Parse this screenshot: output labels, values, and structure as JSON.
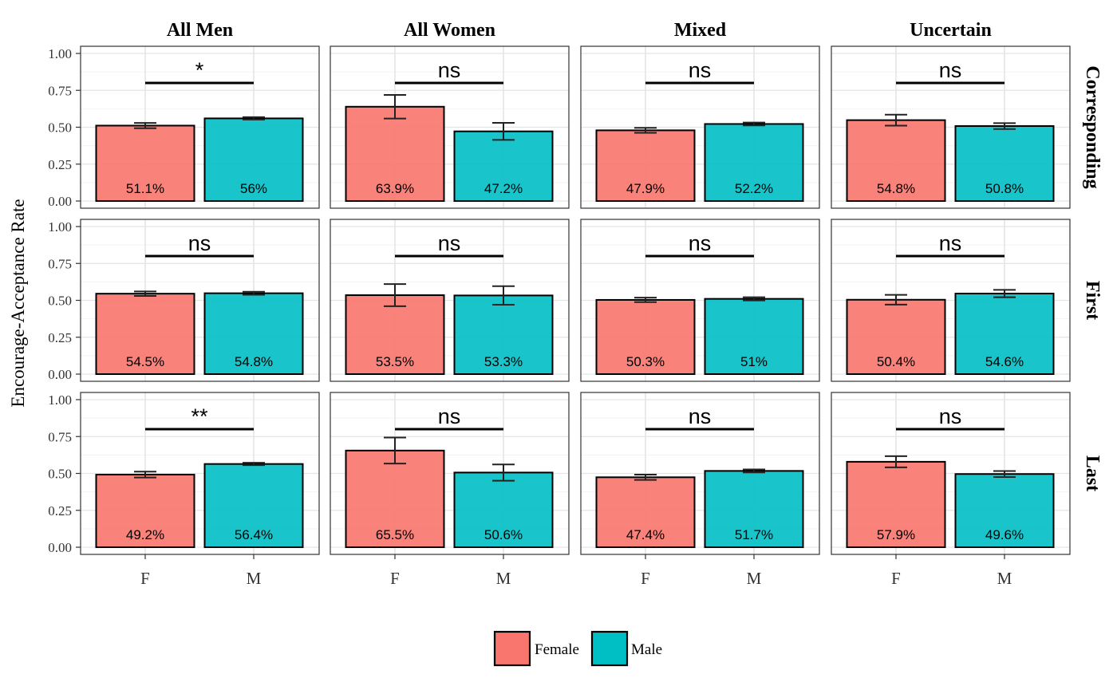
{
  "chart_data": {
    "type": "bar",
    "ylabel": "Encourage-Acceptance Rate",
    "xlabel": "",
    "ylim": [
      0,
      1.05
    ],
    "y_ticks": [
      "0.00",
      "0.25",
      "0.50",
      "0.75",
      "1.00"
    ],
    "categories": [
      "F",
      "M"
    ],
    "column_facets": [
      "All Men",
      "All Women",
      "Mixed",
      "Uncertain"
    ],
    "row_facets": [
      "Corresponding",
      "First",
      "Last"
    ],
    "legend": {
      "position": "bottom",
      "entries": [
        {
          "name": "Female",
          "color": "#F8766D"
        },
        {
          "name": "Male",
          "color": "#00BFC4"
        }
      ]
    },
    "grid": true,
    "panels": [
      {
        "row": "Corresponding",
        "col": "All Men",
        "significance": "*",
        "bars": [
          {
            "x": "F",
            "value": 0.511,
            "error": 0.018,
            "label": "51.1%"
          },
          {
            "x": "M",
            "value": 0.56,
            "error": 0.008,
            "label": "56%"
          }
        ]
      },
      {
        "row": "Corresponding",
        "col": "All Women",
        "significance": "ns",
        "bars": [
          {
            "x": "F",
            "value": 0.639,
            "error": 0.08,
            "label": "63.9%"
          },
          {
            "x": "M",
            "value": 0.472,
            "error": 0.058,
            "label": "47.2%"
          }
        ]
      },
      {
        "row": "Corresponding",
        "col": "Mixed",
        "significance": "ns",
        "bars": [
          {
            "x": "F",
            "value": 0.479,
            "error": 0.017,
            "label": "47.9%"
          },
          {
            "x": "M",
            "value": 0.522,
            "error": 0.01,
            "label": "52.2%"
          }
        ]
      },
      {
        "row": "Corresponding",
        "col": "Uncertain",
        "significance": "ns",
        "bars": [
          {
            "x": "F",
            "value": 0.548,
            "error": 0.037,
            "label": "54.8%"
          },
          {
            "x": "M",
            "value": 0.508,
            "error": 0.02,
            "label": "50.8%"
          }
        ]
      },
      {
        "row": "First",
        "col": "All Men",
        "significance": "ns",
        "bars": [
          {
            "x": "F",
            "value": 0.545,
            "error": 0.015,
            "label": "54.5%"
          },
          {
            "x": "M",
            "value": 0.548,
            "error": 0.01,
            "label": "54.8%"
          }
        ]
      },
      {
        "row": "First",
        "col": "All Women",
        "significance": "ns",
        "bars": [
          {
            "x": "F",
            "value": 0.535,
            "error": 0.075,
            "label": "53.5%"
          },
          {
            "x": "M",
            "value": 0.533,
            "error": 0.063,
            "label": "53.3%"
          }
        ]
      },
      {
        "row": "First",
        "col": "Mixed",
        "significance": "ns",
        "bars": [
          {
            "x": "F",
            "value": 0.503,
            "error": 0.015,
            "label": "50.3%"
          },
          {
            "x": "M",
            "value": 0.51,
            "error": 0.011,
            "label": "51%"
          }
        ]
      },
      {
        "row": "First",
        "col": "Uncertain",
        "significance": "ns",
        "bars": [
          {
            "x": "F",
            "value": 0.504,
            "error": 0.033,
            "label": "50.4%"
          },
          {
            "x": "M",
            "value": 0.546,
            "error": 0.025,
            "label": "54.6%"
          }
        ]
      },
      {
        "row": "Last",
        "col": "All Men",
        "significance": "**",
        "bars": [
          {
            "x": "F",
            "value": 0.492,
            "error": 0.02,
            "label": "49.2%"
          },
          {
            "x": "M",
            "value": 0.564,
            "error": 0.008,
            "label": "56.4%"
          }
        ]
      },
      {
        "row": "Last",
        "col": "All Women",
        "significance": "ns",
        "bars": [
          {
            "x": "F",
            "value": 0.655,
            "error": 0.088,
            "label": "65.5%"
          },
          {
            "x": "M",
            "value": 0.506,
            "error": 0.055,
            "label": "50.6%"
          }
        ]
      },
      {
        "row": "Last",
        "col": "Mixed",
        "significance": "ns",
        "bars": [
          {
            "x": "F",
            "value": 0.474,
            "error": 0.018,
            "label": "47.4%"
          },
          {
            "x": "M",
            "value": 0.517,
            "error": 0.01,
            "label": "51.7%"
          }
        ]
      },
      {
        "row": "Last",
        "col": "Uncertain",
        "significance": "ns",
        "bars": [
          {
            "x": "F",
            "value": 0.579,
            "error": 0.038,
            "label": "57.9%"
          },
          {
            "x": "M",
            "value": 0.496,
            "error": 0.02,
            "label": "49.6%"
          }
        ]
      }
    ],
    "significance_bar_y": 0.8
  }
}
